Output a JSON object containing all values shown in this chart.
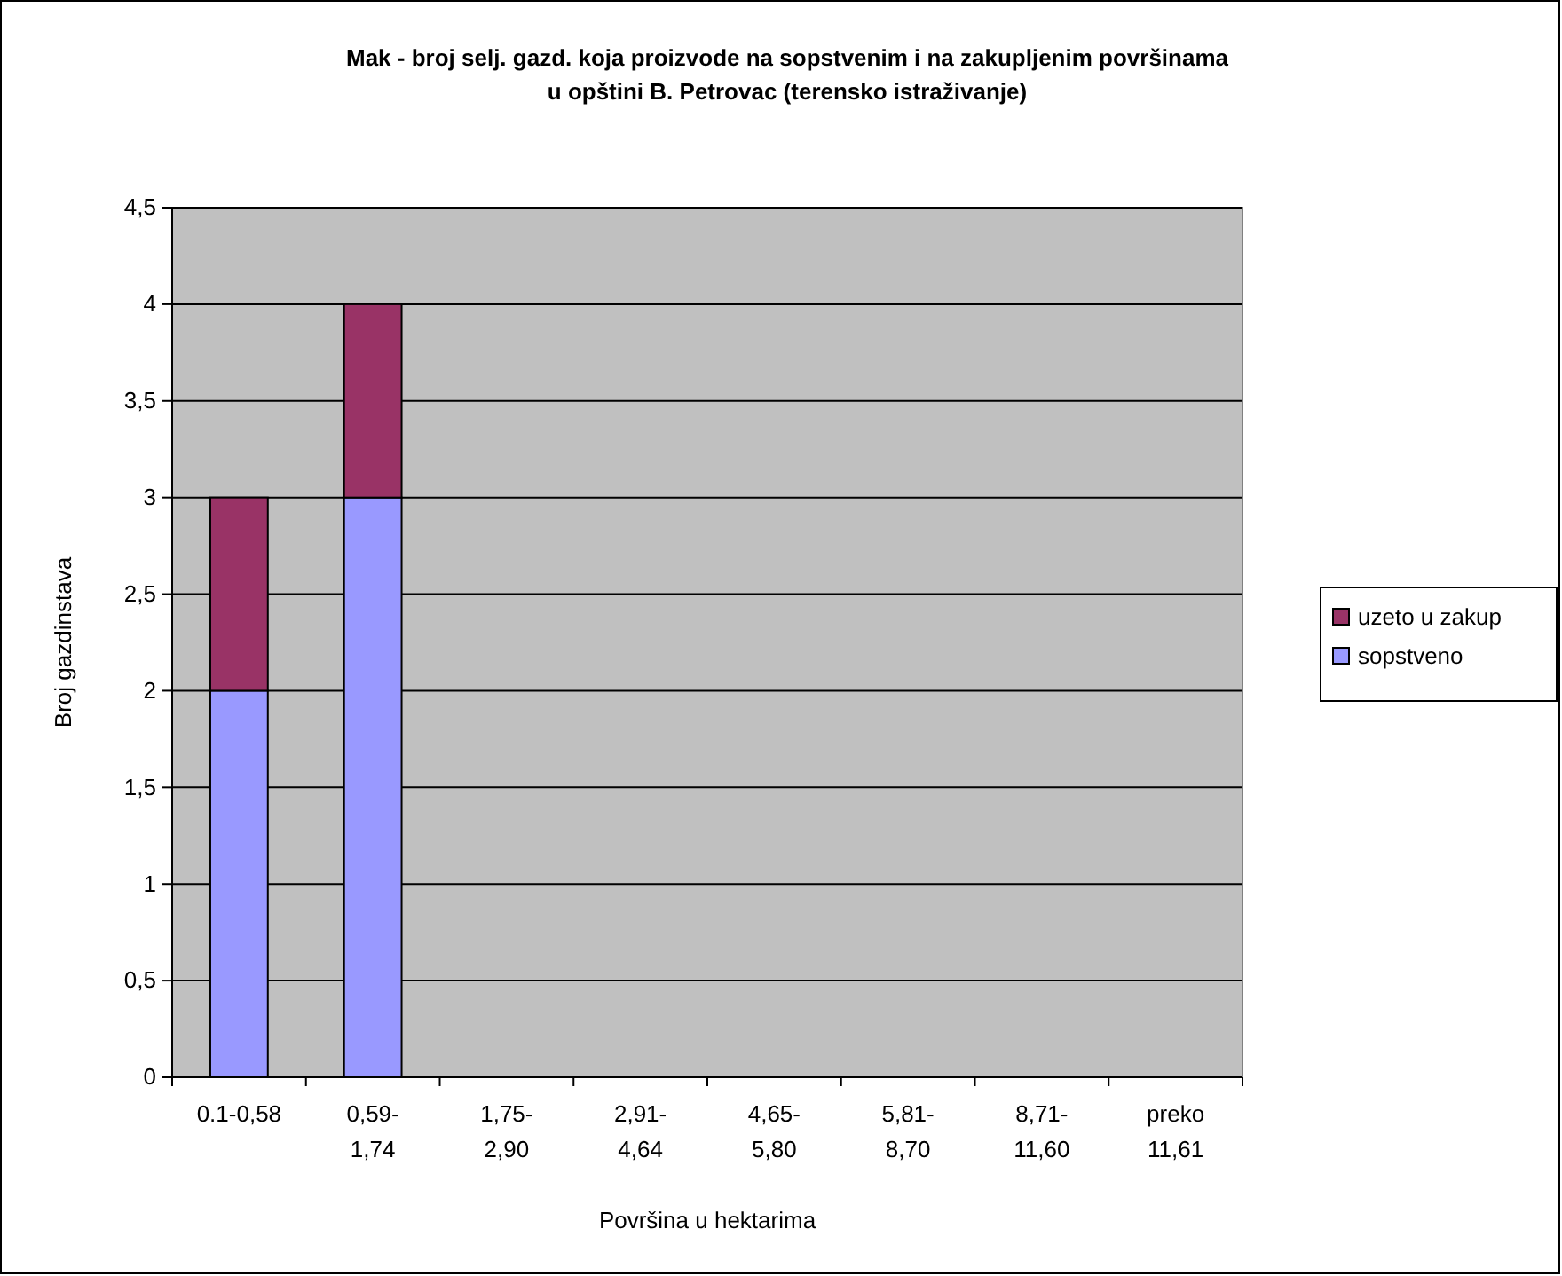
{
  "chart_data": {
    "type": "bar",
    "title": "Mak - broj selj. gazd. koja proizvode na sopstvenim i na zakupljenim površinama u opštini B. Petrovac (terensko istraživanje)",
    "xlabel": "Površina u hektarima",
    "ylabel": "Broj gazdinstava",
    "categories": [
      "0.1-0,58",
      "0,59- 1,74",
      "1,75- 2,90",
      "2,91- 4,64",
      "4,65- 5,80",
      "5,81- 8,70",
      "8,71- 11,60",
      "preko 11,61"
    ],
    "series": [
      {
        "name": "sopstveno",
        "color": "#9999ff",
        "values": [
          2,
          3,
          0,
          0,
          0,
          0,
          0,
          0
        ]
      },
      {
        "name": "uzeto u zakup",
        "color": "#993366",
        "values": [
          1,
          1,
          0,
          0,
          0,
          0,
          0,
          0
        ]
      }
    ],
    "stacked": true,
    "ylim": [
      0,
      4.5
    ],
    "yticks": [
      0,
      {
        "value": 0.5,
        "label": "0,5"
      },
      1,
      {
        "value": 1.5,
        "label": "1,5"
      },
      2,
      {
        "value": 2.5,
        "label": "2,5"
      },
      3,
      {
        "value": 3.5,
        "label": "3,5"
      },
      4,
      {
        "value": 4.5,
        "label": "4,5"
      }
    ],
    "grid": "y",
    "legend": "right"
  }
}
